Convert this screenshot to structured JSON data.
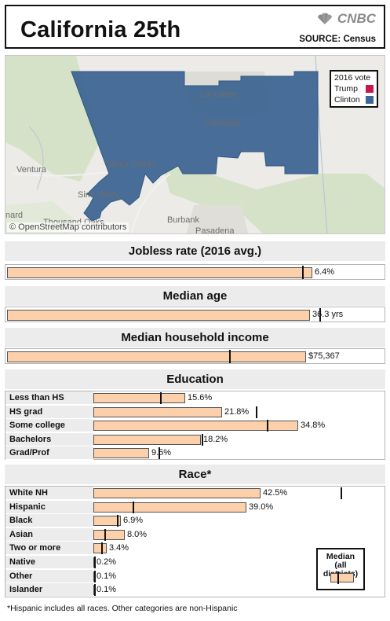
{
  "header": {
    "title": "California 25th",
    "brand": "CNBC",
    "source": "SOURCE: Census"
  },
  "map": {
    "places": [
      "Lancaster",
      "Palmdale",
      "Ventura",
      "Santa Clarita",
      "Simi Valley",
      "nard",
      "Burbank",
      "Pasadena",
      "Thousand Oaks"
    ],
    "attribution": "© OpenStreetMap contributors",
    "legend": {
      "title": "2016 vote",
      "items": [
        {
          "label": "Trump",
          "color": "#c8174a"
        },
        {
          "label": "Clinton",
          "color": "#3e6694"
        }
      ]
    },
    "district_color": "#3e6694"
  },
  "sections": {
    "jobless": {
      "title": "Jobless rate (2016 avg.)",
      "value": 6.4,
      "label": "6.4%",
      "median": 6.2,
      "max": 7.0
    },
    "median_age": {
      "title": "Median age",
      "value": 36.3,
      "label": "36.3 yrs",
      "median": 37.5,
      "max": 40.0
    },
    "income": {
      "title": "Median household income",
      "value": 75367,
      "label": "$75,367",
      "median": 56000,
      "max": 84000
    },
    "education": {
      "title": "Education",
      "max": 50,
      "rows": [
        {
          "label": "Less than HS",
          "value": 15.6,
          "text": "15.6%",
          "median": 11.3
        },
        {
          "label": "HS grad",
          "value": 21.8,
          "text": "21.8%",
          "median": 27.6
        },
        {
          "label": "Some college",
          "value": 34.8,
          "text": "34.8%",
          "median": 29.5
        },
        {
          "label": "Bachelors",
          "value": 18.2,
          "text": "18.2%",
          "median": 18.4
        },
        {
          "label": "Grad/Prof",
          "value": 9.5,
          "text": "9.5%",
          "median": 11.0
        }
      ]
    },
    "race": {
      "title": "Race*",
      "max": 75,
      "rows": [
        {
          "label": "White NH",
          "value": 42.5,
          "text": "42.5%",
          "median": 63.0
        },
        {
          "label": "Hispanic",
          "value": 39.0,
          "text": "39.0%",
          "median": 10.0
        },
        {
          "label": "Black",
          "value": 6.9,
          "text": "6.9%",
          "median": 6.0
        },
        {
          "label": "Asian",
          "value": 8.0,
          "text": "8.0%",
          "median": 2.8
        },
        {
          "label": "Two or more",
          "value": 3.4,
          "text": "3.4%",
          "median": 2.0
        },
        {
          "label": "Native",
          "value": 0.2,
          "text": "0.2%",
          "median": 0.2
        },
        {
          "label": "Other",
          "value": 0.1,
          "text": "0.1%",
          "median": 0.1
        },
        {
          "label": "Islander",
          "value": 0.1,
          "text": "0.1%",
          "median": 0.1
        }
      ]
    }
  },
  "median_key": {
    "title_line1": "Median",
    "title_line2": "(all districts)"
  },
  "footnote": "*Hispanic includes all races. Other categories are non-Hispanic"
}
